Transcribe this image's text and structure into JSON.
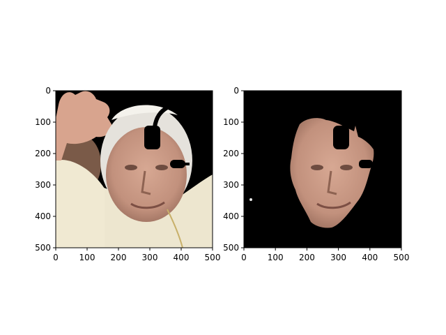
{
  "chart_data": [
    {
      "type": "image",
      "panel": "left",
      "content": "photo",
      "xlim": [
        0,
        500
      ],
      "ylim": [
        500,
        0
      ],
      "xticks": [
        0,
        100,
        200,
        300,
        400,
        500
      ],
      "yticks": [
        0,
        100,
        200,
        300,
        400,
        500
      ],
      "x_tick_labels": [
        "0",
        "100",
        "200",
        "300",
        "400",
        "500"
      ],
      "y_tick_labels": [
        "0",
        "100",
        "200",
        "300",
        "400",
        "500"
      ],
      "grid": false,
      "title": "",
      "xlabel": "",
      "ylabel": ""
    },
    {
      "type": "image",
      "panel": "right",
      "content": "masked face",
      "xlim": [
        0,
        500
      ],
      "ylim": [
        500,
        0
      ],
      "xticks": [
        0,
        100,
        200,
        300,
        400,
        500
      ],
      "yticks": [
        0,
        100,
        200,
        300,
        400,
        500
      ],
      "x_tick_labels": [
        "0",
        "100",
        "200",
        "300",
        "400",
        "500"
      ],
      "y_tick_labels": [
        "0",
        "100",
        "200",
        "300",
        "400",
        "500"
      ],
      "grid": false,
      "title": "",
      "xlabel": "",
      "ylabel": ""
    }
  ],
  "colors": {
    "background": "#ffffff",
    "image_black": "#000000",
    "robe": "#ede6cf",
    "skin": "#c99c87",
    "skin_shadow": "#9b6f5e",
    "hair": "#e5e2dc",
    "hand": "#d8a48e"
  }
}
